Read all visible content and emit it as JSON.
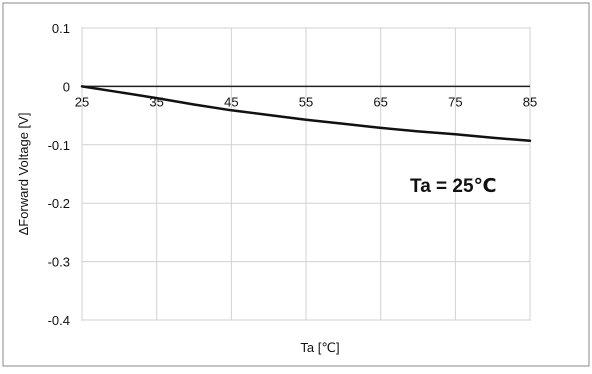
{
  "chart_data": {
    "type": "line",
    "xlabel": "Ta [℃]",
    "ylabel": "ΔForward Voltage [V]",
    "annotation": "Ta = 25℃",
    "xlim": [
      25,
      85
    ],
    "ylim": [
      -0.4,
      0.1
    ],
    "x_ticks": [
      25,
      35,
      45,
      55,
      65,
      75,
      85
    ],
    "y_ticks": [
      0.1,
      0,
      -0.1,
      -0.2,
      -0.3,
      -0.4
    ],
    "x_tick_labels": [
      "25",
      "35",
      "45",
      "55",
      "65",
      "75",
      "85"
    ],
    "y_tick_labels": [
      "0.1",
      "0",
      "-0.1",
      "-0.2",
      "-0.3",
      "-0.4"
    ],
    "grid": true,
    "series": [
      {
        "x": [
          25,
          30,
          35,
          40,
          45,
          50,
          55,
          60,
          65,
          70,
          75,
          80,
          85
        ],
        "y": [
          0,
          -0.01,
          -0.02,
          -0.031,
          -0.041,
          -0.049,
          -0.057,
          -0.064,
          -0.071,
          -0.077,
          -0.082,
          -0.088,
          -0.093
        ],
        "color": "#111111"
      }
    ]
  }
}
